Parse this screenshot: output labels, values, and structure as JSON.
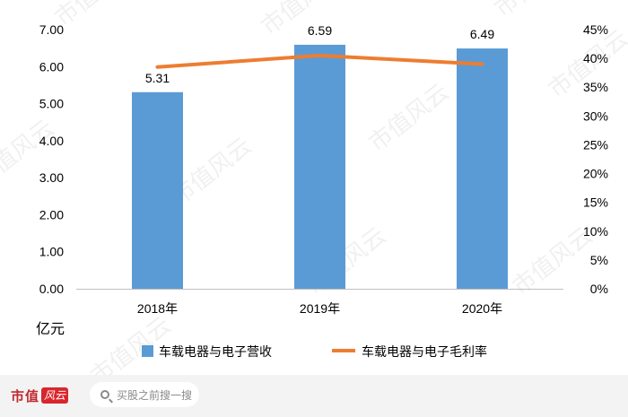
{
  "chart_data": {
    "type": "bar+line",
    "categories": [
      "2018年",
      "2019年",
      "2020年"
    ],
    "series": [
      {
        "name": "车载电器与电子营收",
        "type": "bar",
        "axis": "left",
        "color": "#5b9bd5",
        "values": [
          5.31,
          6.59,
          6.49
        ],
        "labels": [
          "5.31",
          "6.59",
          "6.49"
        ]
      },
      {
        "name": "车载电器与电子毛利率",
        "type": "line",
        "axis": "right",
        "color": "#ed7d31",
        "values": [
          38.5,
          40.5,
          39
        ]
      }
    ],
    "y_left": {
      "min": 0,
      "max": 7,
      "step": 1,
      "tick_labels": [
        "0.00",
        "1.00",
        "2.00",
        "3.00",
        "4.00",
        "5.00",
        "6.00",
        "7.00"
      ],
      "unit_label": "亿元"
    },
    "y_right": {
      "min": 0,
      "max": 45,
      "step": 5,
      "tick_labels": [
        "0%",
        "5%",
        "10%",
        "15%",
        "20%",
        "25%",
        "30%",
        "35%",
        "40%",
        "45%"
      ]
    },
    "grid": false,
    "legend_position": "bottom"
  },
  "watermark": "市值风云",
  "footer": {
    "brand_text": "市值",
    "brand_logo_text": "风云",
    "search_placeholder": "买股之前搜一搜"
  }
}
